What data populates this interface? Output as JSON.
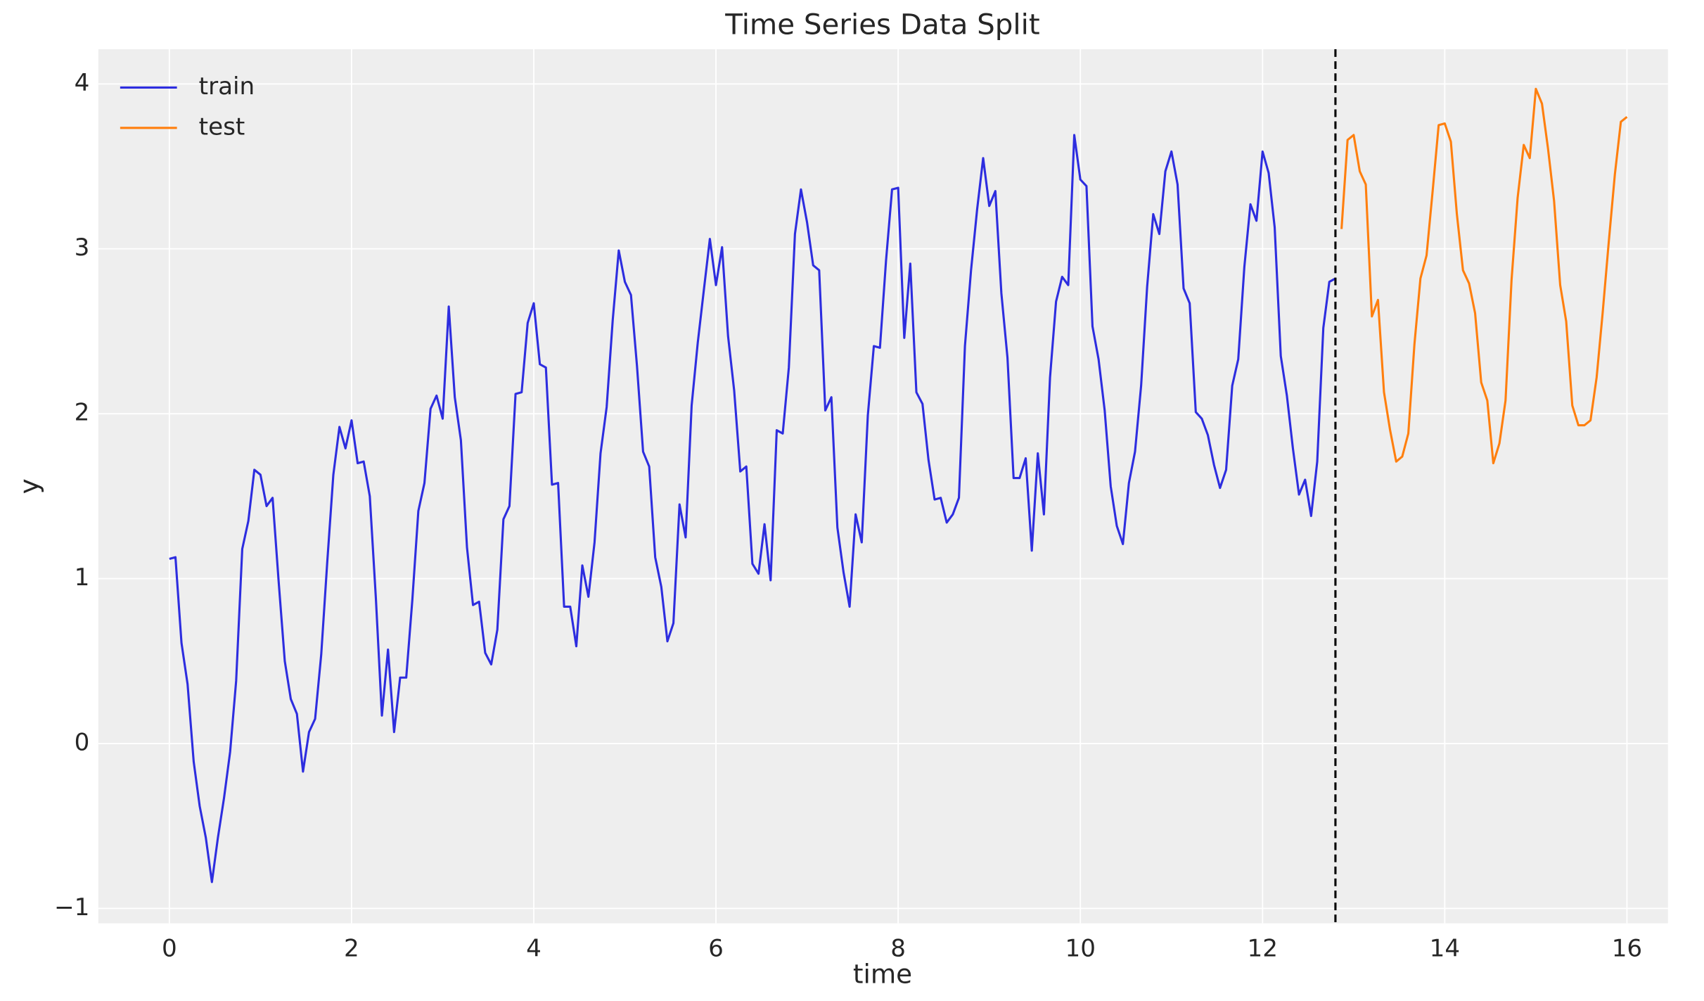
{
  "chart_data": {
    "type": "line",
    "title": "Time Series Data Split",
    "xlabel": "time",
    "ylabel": "y",
    "xlim": [
      -0.78,
      16.45
    ],
    "ylim": [
      -1.09,
      4.21
    ],
    "xticks": [
      0,
      2,
      4,
      6,
      8,
      10,
      12,
      14,
      16
    ],
    "yticks": [
      {
        "value": -1,
        "label": "−1"
      },
      0,
      1,
      2,
      3,
      4
    ],
    "grid": true,
    "legend": "upper left",
    "vline": {
      "x": 12.8,
      "color": "#000000",
      "style": "dashed"
    },
    "series": [
      {
        "name": "train",
        "color": "#2d2ddf",
        "x": [
          0,
          0.067,
          0.133,
          0.2,
          0.267,
          0.333,
          0.4,
          0.467,
          0.533,
          0.6,
          0.667,
          0.733,
          0.8,
          0.867,
          0.933,
          1,
          1.067,
          1.133,
          1.2,
          1.267,
          1.333,
          1.4,
          1.467,
          1.533,
          1.6,
          1.667,
          1.733,
          1.8,
          1.867,
          1.933,
          2,
          2.067,
          2.133,
          2.2,
          2.267,
          2.333,
          2.4,
          2.467,
          2.533,
          2.6,
          2.667,
          2.733,
          2.8,
          2.867,
          2.933,
          3,
          3.067,
          3.133,
          3.2,
          3.267,
          3.333,
          3.4,
          3.467,
          3.533,
          3.6,
          3.667,
          3.733,
          3.8,
          3.867,
          3.933,
          4,
          4.067,
          4.133,
          4.2,
          4.267,
          4.333,
          4.4,
          4.467,
          4.533,
          4.6,
          4.667,
          4.733,
          4.8,
          4.867,
          4.933,
          5,
          5.067,
          5.133,
          5.2,
          5.267,
          5.333,
          5.4,
          5.467,
          5.533,
          5.6,
          5.667,
          5.733,
          5.8,
          5.867,
          5.933,
          6,
          6.067,
          6.133,
          6.2,
          6.267,
          6.333,
          6.4,
          6.467,
          6.533,
          6.6,
          6.667,
          6.733,
          6.8,
          6.867,
          6.933,
          7,
          7.067,
          7.133,
          7.2,
          7.267,
          7.333,
          7.4,
          7.467,
          7.533,
          7.6,
          7.667,
          7.733,
          7.8,
          7.867,
          7.933,
          8,
          8.067,
          8.133,
          8.2,
          8.267,
          8.333,
          8.4,
          8.467,
          8.533,
          8.6,
          8.667,
          8.733,
          8.8,
          8.867,
          8.933,
          9,
          9.067,
          9.133,
          9.2,
          9.267,
          9.333,
          9.4,
          9.467,
          9.533,
          9.6,
          9.667,
          9.733,
          9.8,
          9.867,
          9.933,
          10,
          10.067,
          10.133,
          10.2,
          10.267,
          10.333,
          10.4,
          10.467,
          10.533,
          10.6,
          10.667,
          10.733,
          10.8,
          10.867,
          10.933,
          11,
          11.067,
          11.133,
          11.2,
          11.267,
          11.333,
          11.4,
          11.467,
          11.533,
          11.6,
          11.667,
          11.733,
          11.8,
          11.867,
          11.933,
          12,
          12.067,
          12.133,
          12.2,
          12.267,
          12.333,
          12.4,
          12.467,
          12.533,
          12.6,
          12.667,
          12.733,
          12.8
        ],
        "values": [
          1.12,
          1.13,
          0.61,
          0.36,
          -0.11,
          -0.38,
          -0.57,
          -0.84,
          -0.57,
          -0.33,
          -0.05,
          0.38,
          1.18,
          1.35,
          1.66,
          1.63,
          1.44,
          1.49,
          0.98,
          0.5,
          0.27,
          0.18,
          -0.17,
          0.07,
          0.15,
          0.54,
          1.1,
          1.63,
          1.92,
          1.79,
          1.96,
          1.7,
          1.71,
          1.5,
          0.88,
          0.17,
          0.57,
          0.07,
          0.4,
          0.4,
          0.87,
          1.41,
          1.58,
          2.03,
          2.11,
          1.97,
          2.65,
          2.1,
          1.84,
          1.19,
          0.84,
          0.86,
          0.55,
          0.48,
          0.69,
          1.36,
          1.44,
          2.12,
          2.13,
          2.55,
          2.67,
          2.3,
          2.28,
          1.57,
          1.58,
          0.83,
          0.83,
          0.59,
          1.08,
          0.89,
          1.22,
          1.76,
          2.04,
          2.57,
          2.99,
          2.8,
          2.72,
          2.29,
          1.77,
          1.68,
          1.13,
          0.95,
          0.62,
          0.73,
          1.45,
          1.25,
          2.05,
          2.43,
          2.75,
          3.06,
          2.78,
          3.01,
          2.47,
          2.14,
          1.65,
          1.68,
          1.09,
          1.03,
          1.33,
          0.99,
          1.9,
          1.88,
          2.28,
          3.09,
          3.36,
          3.16,
          2.9,
          2.87,
          2.02,
          2.1,
          1.31,
          1.04,
          0.83,
          1.39,
          1.22,
          1.99,
          2.41,
          2.4,
          2.93,
          3.36,
          3.37,
          2.46,
          2.91,
          2.13,
          2.06,
          1.72,
          1.48,
          1.49,
          1.34,
          1.39,
          1.49,
          2.41,
          2.87,
          3.24,
          3.55,
          3.26,
          3.35,
          2.73,
          2.34,
          1.61,
          1.61,
          1.73,
          1.17,
          1.76,
          1.39,
          2.22,
          2.68,
          2.83,
          2.78,
          3.69,
          3.42,
          3.38,
          2.53,
          2.33,
          2.02,
          1.56,
          1.32,
          1.21,
          1.58,
          1.77,
          2.17,
          2.77,
          3.21,
          3.09,
          3.47,
          3.59,
          3.39,
          2.76,
          2.67,
          2.01,
          1.97,
          1.87,
          1.69,
          1.55,
          1.66,
          2.17,
          2.33,
          2.89,
          3.27,
          3.17,
          3.59,
          3.46,
          3.13,
          2.35,
          2.11,
          1.79,
          1.51,
          1.6,
          1.38,
          1.71,
          2.52,
          2.8,
          2.82
        ]
      },
      {
        "name": "test",
        "color": "#ff7f0e",
        "x": [
          12.867,
          12.933,
          13,
          13.067,
          13.133,
          13.2,
          13.267,
          13.333,
          13.4,
          13.467,
          13.533,
          13.6,
          13.667,
          13.733,
          13.8,
          13.867,
          13.933,
          14,
          14.067,
          14.133,
          14.2,
          14.267,
          14.333,
          14.4,
          14.467,
          14.533,
          14.6,
          14.667,
          14.733,
          14.8,
          14.867,
          14.933,
          15,
          15.067,
          15.133,
          15.2,
          15.267,
          15.333,
          15.4,
          15.467,
          15.533,
          15.6,
          15.667,
          15.733,
          15.8,
          15.867,
          15.933,
          16
        ],
        "values": [
          3.12,
          3.66,
          3.69,
          3.47,
          3.39,
          2.59,
          2.69,
          2.13,
          1.9,
          1.71,
          1.74,
          1.88,
          2.42,
          2.82,
          2.96,
          3.35,
          3.75,
          3.76,
          3.65,
          3.21,
          2.87,
          2.79,
          2.61,
          2.19,
          2.08,
          1.7,
          1.82,
          2.08,
          2.81,
          3.31,
          3.63,
          3.55,
          3.97,
          3.88,
          3.61,
          3.29,
          2.78,
          2.56,
          2.05,
          1.93,
          1.93,
          1.96,
          2.22,
          2.61,
          3.04,
          3.45,
          3.77,
          3.8
        ]
      }
    ]
  }
}
